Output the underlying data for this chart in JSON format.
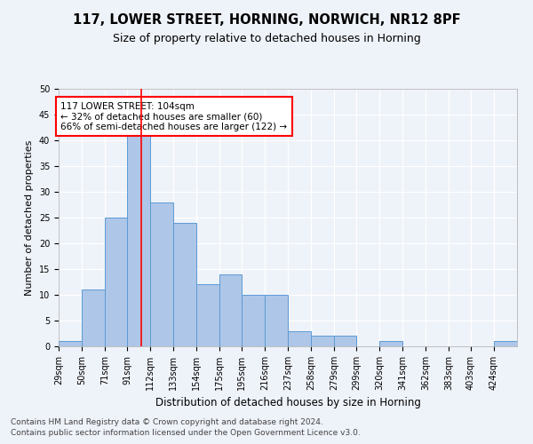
{
  "title1": "117, LOWER STREET, HORNING, NORWICH, NR12 8PF",
  "title2": "Size of property relative to detached houses in Horning",
  "xlabel": "Distribution of detached houses by size in Horning",
  "ylabel": "Number of detached properties",
  "bin_edges": [
    29,
    50,
    71,
    91,
    112,
    133,
    154,
    175,
    195,
    216,
    237,
    258,
    279,
    299,
    320,
    341,
    362,
    383,
    403,
    424,
    445
  ],
  "bar_values": [
    1,
    11,
    25,
    41,
    28,
    24,
    12,
    14,
    10,
    10,
    3,
    2,
    2,
    0,
    1,
    0,
    0,
    0,
    0,
    1
  ],
  "bar_color": "#aec6e8",
  "bar_edge_color": "#5b9bd5",
  "red_line_x": 104,
  "annotation_text": "117 LOWER STREET: 104sqm\n← 32% of detached houses are smaller (60)\n66% of semi-detached houses are larger (122) →",
  "annotation_box_color": "white",
  "annotation_box_edge": "red",
  "ylim": [
    0,
    50
  ],
  "yticks": [
    0,
    5,
    10,
    15,
    20,
    25,
    30,
    35,
    40,
    45,
    50
  ],
  "footnote1": "Contains HM Land Registry data © Crown copyright and database right 2024.",
  "footnote2": "Contains public sector information licensed under the Open Government Licence v3.0.",
  "background_color": "#eef2f9",
  "grid_color": "white",
  "title1_fontsize": 10.5,
  "title2_fontsize": 9,
  "xlabel_fontsize": 8.5,
  "ylabel_fontsize": 8,
  "tick_fontsize": 7,
  "footnote_fontsize": 6.5,
  "annot_fontsize": 7.5
}
